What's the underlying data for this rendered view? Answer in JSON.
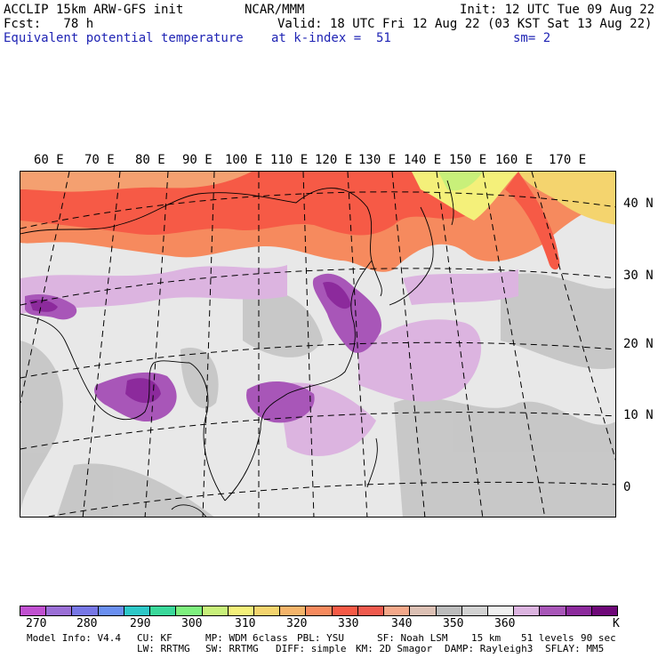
{
  "header": {
    "line1_left": "ACCLIP 15km ARW-GFS init",
    "line1_center": "NCAR/MMM",
    "line1_right": "Init: 12 UTC Tue 09 Aug 22",
    "line2_left": "Fcst:   78 h",
    "line2_right": "Valid: 18 UTC Fri 12 Aug 22 (03 KST Sat 13 Aug 22)",
    "line3_left": "Equivalent potential temperature",
    "line3_center": "at k-index =  51",
    "line3_right": "sm= 2"
  },
  "map": {
    "lon_labels": [
      "60 E",
      "70 E",
      "80 E",
      "90 E",
      "100 E",
      "110 E",
      "120 E",
      "130 E",
      "140 E",
      "150 E",
      "160 E",
      "170 E"
    ],
    "lat_labels": [
      "40 N",
      "30 N",
      "20 N",
      "10 N",
      "0"
    ]
  },
  "colorbar": {
    "colors": [
      "#c050d0",
      "#9b6fd6",
      "#7777e6",
      "#6a8ff0",
      "#2ec8c8",
      "#3ad89a",
      "#7ef07e",
      "#c8f07a",
      "#f4f07a",
      "#f4d46e",
      "#f4b46a",
      "#f68a5e",
      "#f65a46",
      "#ef5a4e",
      "#f4a88a",
      "#dcc0b4",
      "#bcbcbc",
      "#d2d2d2",
      "#f0f0f0",
      "#dcb4e0",
      "#a856b8",
      "#8c2a9c",
      "#6e0878"
    ],
    "labels": [
      "270",
      "280",
      "290",
      "300",
      "310",
      "320",
      "330",
      "340",
      "350",
      "360"
    ],
    "unit": "K"
  },
  "footer": {
    "line1": [
      "Model Info: V4.4",
      "CU: KF",
      "MP: WDM 6class",
      "PBL: YSU",
      "SF: Noah LSM",
      "15 km",
      "51 levels",
      "90 sec"
    ],
    "line2": [
      "LW: RRTMG",
      "SW: RRTMG",
      "DIFF: simple",
      "KM: 2D Smagor",
      "DAMP: Rayleigh3",
      "SFLAY: MM5"
    ]
  }
}
